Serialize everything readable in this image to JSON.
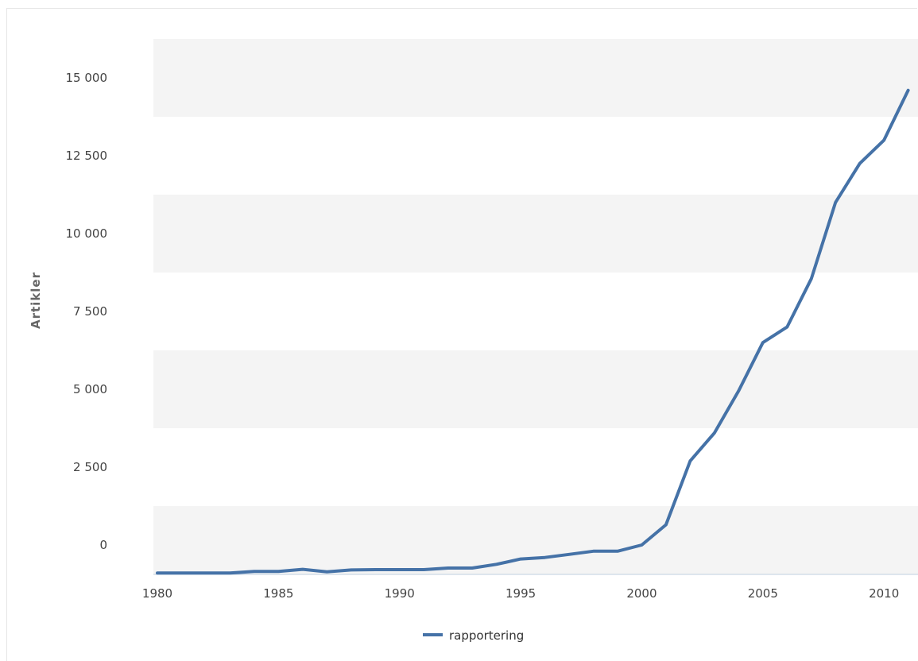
{
  "chart_data": {
    "type": "line",
    "title": "",
    "xlabel": "",
    "ylabel": "Artikler",
    "xlim": [
      1980,
      2011
    ],
    "ylim": [
      -1000,
      16000
    ],
    "x_ticks": [
      "1980",
      "1985",
      "1990",
      "1995",
      "2000",
      "2005",
      "2010"
    ],
    "y_ticks": [
      "0",
      "2 500",
      "5 000",
      "7 500",
      "10 000",
      "12 500",
      "15 000"
    ],
    "grid": "alternating horizontal bands",
    "legend_position": "bottom-center",
    "series": [
      {
        "name": "rapportering",
        "color": "#4572a7",
        "x": [
          1980,
          1981,
          1982,
          1983,
          1984,
          1985,
          1986,
          1987,
          1988,
          1989,
          1990,
          1991,
          1992,
          1993,
          1994,
          1995,
          1996,
          1997,
          1998,
          1999,
          2000,
          2001,
          2002,
          2003,
          2004,
          2005,
          2006,
          2007,
          2008,
          2009,
          2010,
          2011
        ],
        "values": [
          -900,
          -900,
          -900,
          -900,
          -850,
          -850,
          -780,
          -860,
          -800,
          -790,
          -790,
          -790,
          -740,
          -740,
          -620,
          -450,
          -400,
          -300,
          -200,
          -200,
          0,
          650,
          2700,
          3600,
          4950,
          6500,
          7000,
          8550,
          11000,
          12250,
          13000,
          14600
        ]
      }
    ]
  }
}
